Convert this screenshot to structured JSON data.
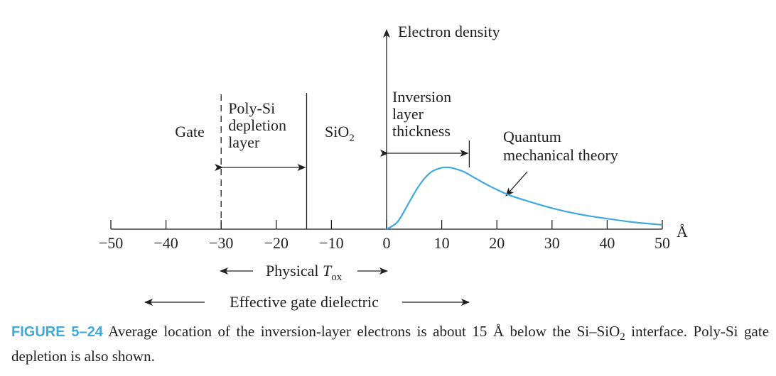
{
  "chart_data": {
    "type": "line",
    "title": "",
    "ylabel": "Electron density",
    "x_unit": "Å",
    "xlim": [
      -50,
      50
    ],
    "xticks": [
      -50,
      -40,
      -30,
      -20,
      -10,
      0,
      10,
      20,
      30,
      40,
      50
    ],
    "xtick_labels": [
      "−50",
      "−40",
      "−30",
      "−20",
      "−10",
      "0",
      "10",
      "20",
      "30",
      "40",
      "50"
    ],
    "series": [
      {
        "name": "Quantum mechanical theory",
        "color": "#3fa9dd",
        "x": [
          0,
          2,
          4,
          6,
          8,
          10,
          11,
          12,
          14,
          16,
          18,
          20,
          22,
          25,
          30,
          35,
          40,
          45,
          50
        ],
        "y": [
          0.0,
          0.12,
          0.42,
          0.72,
          0.92,
          0.995,
          1.0,
          0.99,
          0.93,
          0.83,
          0.73,
          0.64,
          0.56,
          0.47,
          0.34,
          0.24,
          0.17,
          0.11,
          0.07
        ]
      }
    ],
    "regions": {
      "gate": "Gate",
      "poly_depletion": [
        "Poly-Si",
        "depletion",
        "layer"
      ],
      "sio2": "SiO",
      "sio2_sub": "2",
      "inversion": [
        "Inversion",
        "layer",
        "thickness"
      ]
    },
    "boundaries": {
      "gate_edge": -30,
      "oxide_edge": -14.5,
      "interface": 0,
      "inversion_edge": 15
    },
    "annotations": {
      "quantum": [
        "Quantum",
        "mechanical theory"
      ],
      "physical_tox_prefix": "Physical ",
      "physical_tox_var": "T",
      "physical_tox_sub": "ox",
      "effective_dielectric": "Effective gate dielectric"
    }
  },
  "caption": {
    "label": "FIGURE 5–24",
    "text_1": " Average location of the inversion-layer electrons is about 15 Å below the Si–SiO",
    "sub": "2",
    "text_2": " interface. Poly-Si gate depletion is also shown."
  },
  "colors": {
    "curve": "#3fa9dd",
    "ink": "#231f20",
    "caption_label": "#3fa9dd"
  }
}
